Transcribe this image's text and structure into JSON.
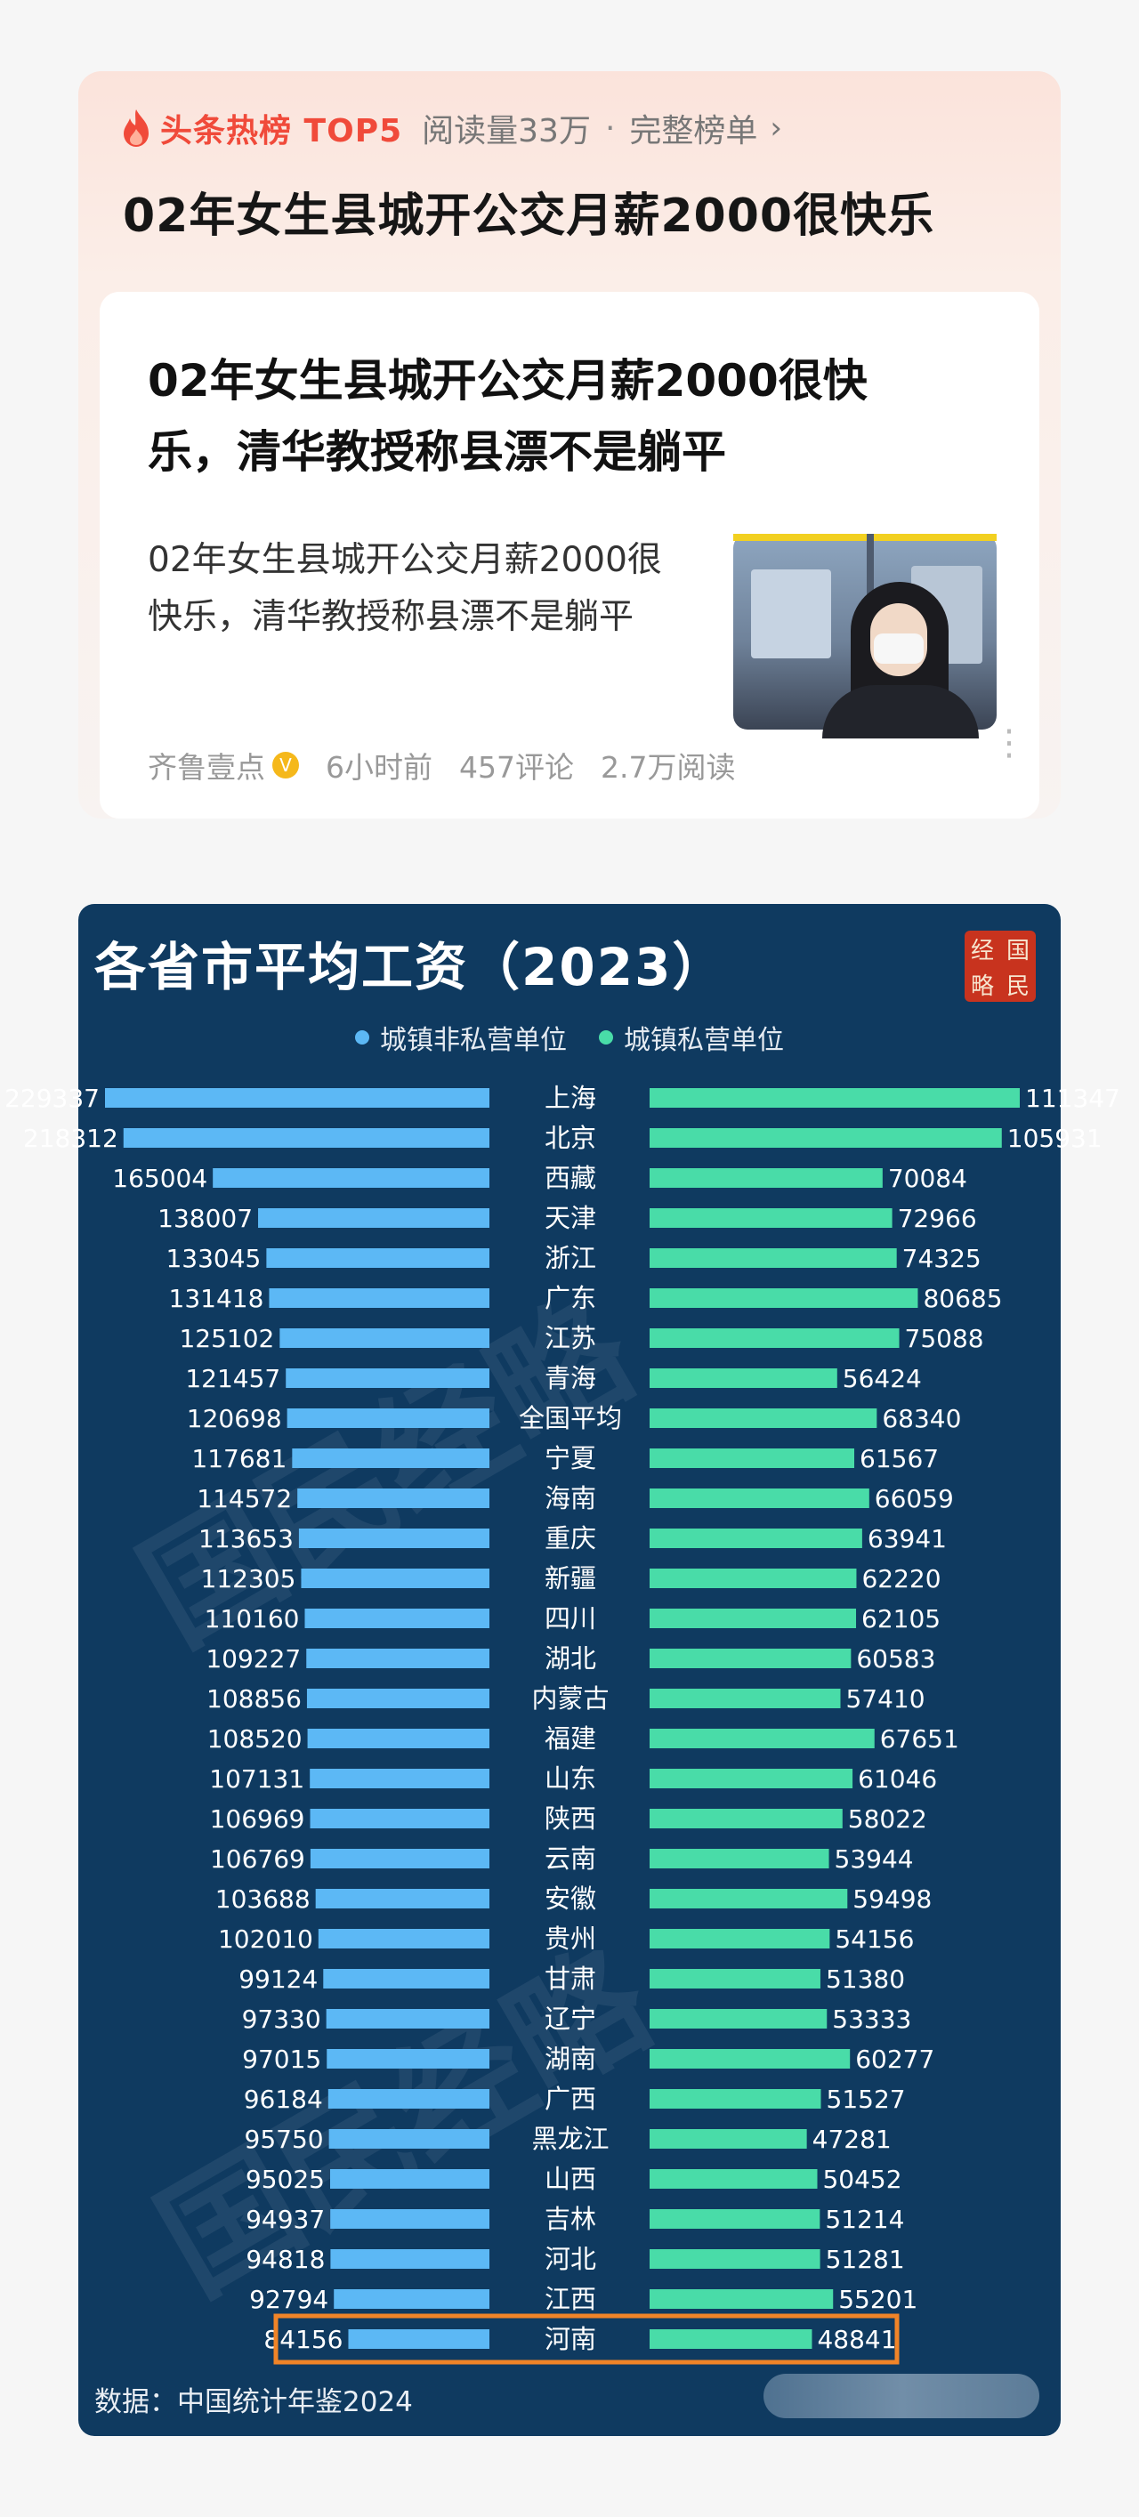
{
  "hot": {
    "brand": "头条热榜 TOP5",
    "reads": "阅读量33万",
    "dot": "·",
    "full_list": "完整榜单",
    "chevron": "›",
    "title": "02年女生县城开公交月薪2000很快乐"
  },
  "article": {
    "title": "02年女生县城开公交月薪2000很快乐，清华教授称县漂不是躺平",
    "summary": "02年女生县城开公交月薪2000很快乐，清华教授称县漂不是躺平",
    "source": "齐鲁壹点",
    "verified_mark": "V",
    "time": "6小时前",
    "comments": "457评论",
    "reads": "2.7万阅读",
    "more": "⋮"
  },
  "colors": {
    "accent_red": "#f04a3a",
    "chart_bg": "#0f3a60",
    "series_public": "#5cb8f5",
    "series_private": "#49dca8",
    "highlight": "#f08428"
  },
  "chart": {
    "title": "各省市平均工资（2023）",
    "seal_chars": [
      "经",
      "国",
      "略",
      "民"
    ],
    "watermark": "国民经略",
    "source": "数据：中国统计年鉴2024",
    "legend": [
      "城镇非私营单位",
      "城镇私营单位"
    ]
  },
  "chart_data": {
    "type": "bar",
    "orientation": "horizontal-butterfly",
    "title": "各省市平均工资（2023）",
    "categories": [
      "上海",
      "北京",
      "西藏",
      "天津",
      "浙江",
      "广东",
      "江苏",
      "青海",
      "全国平均",
      "宁夏",
      "海南",
      "重庆",
      "新疆",
      "四川",
      "湖北",
      "内蒙古",
      "福建",
      "山东",
      "陕西",
      "云南",
      "安徽",
      "贵州",
      "甘肃",
      "辽宁",
      "湖南",
      "广西",
      "黑龙江",
      "山西",
      "吉林",
      "河北",
      "江西",
      "河南"
    ],
    "series": [
      {
        "name": "城镇非私营单位",
        "side": "left",
        "values": [
          229337,
          218312,
          165004,
          138007,
          133045,
          131418,
          125102,
          121457,
          120698,
          117681,
          114572,
          113653,
          112305,
          110160,
          109227,
          108856,
          108520,
          107131,
          106969,
          106769,
          103688,
          102010,
          99124,
          97330,
          97015,
          96184,
          95750,
          95025,
          94937,
          94818,
          92794,
          84156
        ]
      },
      {
        "name": "城镇私营单位",
        "side": "right",
        "values": [
          111347,
          105931,
          70084,
          72966,
          74325,
          80685,
          75088,
          56424,
          68340,
          61567,
          66059,
          63941,
          62220,
          62105,
          60583,
          57410,
          67651,
          61046,
          58022,
          53944,
          59498,
          54156,
          51380,
          53333,
          60277,
          51527,
          47281,
          50452,
          51214,
          51281,
          55201,
          48841
        ]
      }
    ],
    "highlighted_category": "河南",
    "source": "数据：中国统计年鉴2024"
  }
}
